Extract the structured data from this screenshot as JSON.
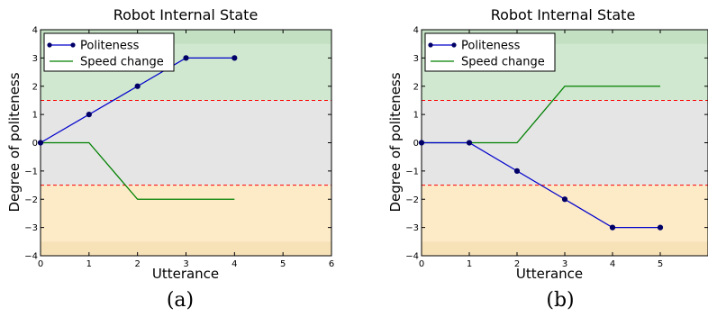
{
  "chart_data": [
    {
      "type": "line",
      "title": "Robot Internal State",
      "xlabel": "Utterance",
      "ylabel": "Degree of politeness",
      "xlim": [
        0,
        6
      ],
      "ylim": [
        -4,
        4
      ],
      "xticks": [
        "0",
        "1",
        "2",
        "3",
        "4",
        "5",
        "6"
      ],
      "yticks": [
        "4",
        "3",
        "2",
        "1",
        "0",
        "−1",
        "−2",
        "−3",
        "−4"
      ],
      "bands": [
        {
          "from": 1.5,
          "to": 4,
          "color": "#cfe8cf"
        },
        {
          "from": -1.5,
          "to": 1.5,
          "color": "#e5e5e5"
        },
        {
          "from": -4,
          "to": -1.5,
          "color": "#fdebc8"
        }
      ],
      "band_edges": [
        {
          "from": 3.5,
          "to": 4,
          "color": "#c3e0c3"
        },
        {
          "from": -4,
          "to": -3.5,
          "color": "#f7e2b8"
        }
      ],
      "thresholds": [
        1.5,
        -1.5
      ],
      "threshold_color": "#ff0000",
      "series": [
        {
          "name": "Politeness",
          "color": "#0000cc",
          "marker": true,
          "x": [
            0,
            1,
            2,
            3,
            4
          ],
          "values": [
            0,
            1,
            2,
            3,
            3
          ]
        },
        {
          "name": "Speed change",
          "color": "#008000",
          "marker": false,
          "x": [
            0,
            1,
            2,
            3,
            4
          ],
          "values": [
            0,
            0,
            -2,
            -2,
            -2
          ]
        }
      ],
      "legend": "top-left",
      "caption": "(a)"
    },
    {
      "type": "line",
      "title": "Robot Internal State",
      "xlabel": "Utterance",
      "ylabel": "Degree of politeness",
      "xlim": [
        0,
        6
      ],
      "ylim": [
        -4,
        4
      ],
      "xticks": [
        "0",
        "1",
        "2",
        "3",
        "4",
        "5"
      ],
      "yticks": [
        "4",
        "3",
        "2",
        "1",
        "0",
        "−1",
        "−2",
        "−3",
        "−4"
      ],
      "bands": [
        {
          "from": 1.5,
          "to": 4,
          "color": "#cfe8cf"
        },
        {
          "from": -1.5,
          "to": 1.5,
          "color": "#e5e5e5"
        },
        {
          "from": -4,
          "to": -1.5,
          "color": "#fdebc8"
        }
      ],
      "band_edges": [
        {
          "from": 3.5,
          "to": 4,
          "color": "#c3e0c3"
        },
        {
          "from": -4,
          "to": -3.5,
          "color": "#f7e2b8"
        }
      ],
      "thresholds": [
        1.5,
        -1.5
      ],
      "threshold_color": "#ff0000",
      "series": [
        {
          "name": "Politeness",
          "color": "#0000cc",
          "marker": true,
          "x": [
            0,
            1,
            2,
            3,
            4,
            5
          ],
          "values": [
            0,
            0,
            -1,
            -2,
            -3,
            -3
          ]
        },
        {
          "name": "Speed change",
          "color": "#008000",
          "marker": false,
          "x": [
            0,
            1,
            2,
            3,
            4,
            5
          ],
          "values": [
            0,
            0,
            0,
            2,
            2,
            2
          ]
        }
      ],
      "legend": "top-left",
      "caption": "(b)"
    }
  ]
}
